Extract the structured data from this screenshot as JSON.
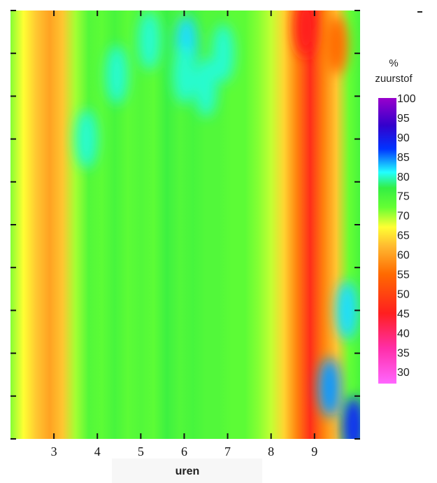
{
  "chart_data": {
    "type": "heatmap",
    "title": "",
    "xlabel": "uren",
    "ylabel": "",
    "x_ticks": [
      3,
      4,
      5,
      6,
      7,
      8,
      9
    ],
    "xlim": [
      2,
      10.05
    ],
    "y_tick_count": 11,
    "colorbar": {
      "title_line1": "%",
      "title_line2": "zuurstof",
      "labels": [
        100,
        95,
        90,
        85,
        80,
        75,
        70,
        65,
        60,
        55,
        50,
        45,
        40,
        35,
        30
      ],
      "range": [
        27,
        100
      ],
      "stops": [
        {
          "v": 27,
          "color": "#ff66ff"
        },
        {
          "v": 36,
          "color": "#ff2ea8"
        },
        {
          "v": 45,
          "color": "#ff1f1f"
        },
        {
          "v": 55,
          "color": "#ff6a00"
        },
        {
          "v": 62,
          "color": "#ffb830"
        },
        {
          "v": 67,
          "color": "#ffff33"
        },
        {
          "v": 72,
          "color": "#66ff33"
        },
        {
          "v": 77,
          "color": "#33ee44"
        },
        {
          "v": 81,
          "color": "#22ffff"
        },
        {
          "v": 87,
          "color": "#0033ff"
        },
        {
          "v": 93,
          "color": "#3300cc"
        },
        {
          "v": 100,
          "color": "#9900cc"
        }
      ]
    },
    "grid": false,
    "columns": [
      {
        "x": 2.0,
        "v": 71
      },
      {
        "x": 2.3,
        "v": 67
      },
      {
        "x": 2.6,
        "v": 63
      },
      {
        "x": 2.9,
        "v": 60
      },
      {
        "x": 3.2,
        "v": 63
      },
      {
        "x": 3.5,
        "v": 70
      },
      {
        "x": 3.8,
        "v": 74
      },
      {
        "x": 4.1,
        "v": 73
      },
      {
        "x": 4.4,
        "v": 75
      },
      {
        "x": 4.7,
        "v": 73
      },
      {
        "x": 5.0,
        "v": 74
      },
      {
        "x": 5.3,
        "v": 73
      },
      {
        "x": 5.6,
        "v": 76
      },
      {
        "x": 5.9,
        "v": 74
      },
      {
        "x": 6.2,
        "v": 75
      },
      {
        "x": 6.5,
        "v": 74
      },
      {
        "x": 6.8,
        "v": 74
      },
      {
        "x": 7.1,
        "v": 73
      },
      {
        "x": 7.4,
        "v": 73
      },
      {
        "x": 7.7,
        "v": 71
      },
      {
        "x": 8.0,
        "v": 69
      },
      {
        "x": 8.3,
        "v": 64
      },
      {
        "x": 8.6,
        "v": 57
      },
      {
        "x": 8.9,
        "v": 47
      },
      {
        "x": 9.2,
        "v": 57
      },
      {
        "x": 9.5,
        "v": 63
      },
      {
        "x": 9.8,
        "v": 72
      },
      {
        "x": 10.05,
        "v": 75
      }
    ],
    "hotspots": [
      {
        "x": 5.2,
        "y": 0.93,
        "v": 80
      },
      {
        "x": 6.05,
        "y": 0.92,
        "v": 82
      },
      {
        "x": 6.0,
        "y": 0.85,
        "v": 80
      },
      {
        "x": 6.5,
        "y": 0.82,
        "v": 80
      },
      {
        "x": 6.9,
        "y": 0.9,
        "v": 80
      },
      {
        "x": 4.45,
        "y": 0.85,
        "v": 80
      },
      {
        "x": 3.75,
        "y": 0.7,
        "v": 80
      },
      {
        "x": 9.35,
        "y": 0.12,
        "v": 84
      },
      {
        "x": 9.75,
        "y": 0.3,
        "v": 82
      },
      {
        "x": 9.9,
        "y": 0.03,
        "v": 88
      },
      {
        "x": 9.5,
        "y": 0.92,
        "v": 55
      },
      {
        "x": 8.8,
        "y": 0.96,
        "v": 45
      }
    ]
  }
}
